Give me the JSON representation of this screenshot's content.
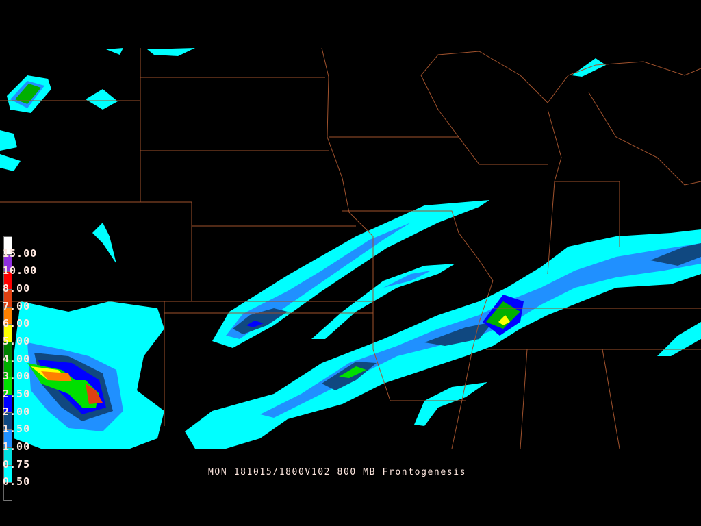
{
  "caption": "MON 181015/1800V102 800 MB Frontogenesis",
  "legend": {
    "labels": [
      "15.00",
      "10.00",
      "8.00",
      "7.00",
      "6.00",
      "5.00",
      "4.00",
      "3.00",
      "2.50",
      "2.00",
      "1.50",
      "1.00",
      "0.75",
      "0.50"
    ],
    "colors": [
      "#ffffff",
      "#9030e0",
      "#ff0000",
      "#e04010",
      "#ff8000",
      "#ffff00",
      "#008000",
      "#00b000",
      "#00e000",
      "#0000ff",
      "#104880",
      "#2090ff",
      "#00e0e0",
      "#00ffff",
      "#000000"
    ]
  },
  "colors": {
    "border": "#a0522d",
    "background": "#000000"
  }
}
